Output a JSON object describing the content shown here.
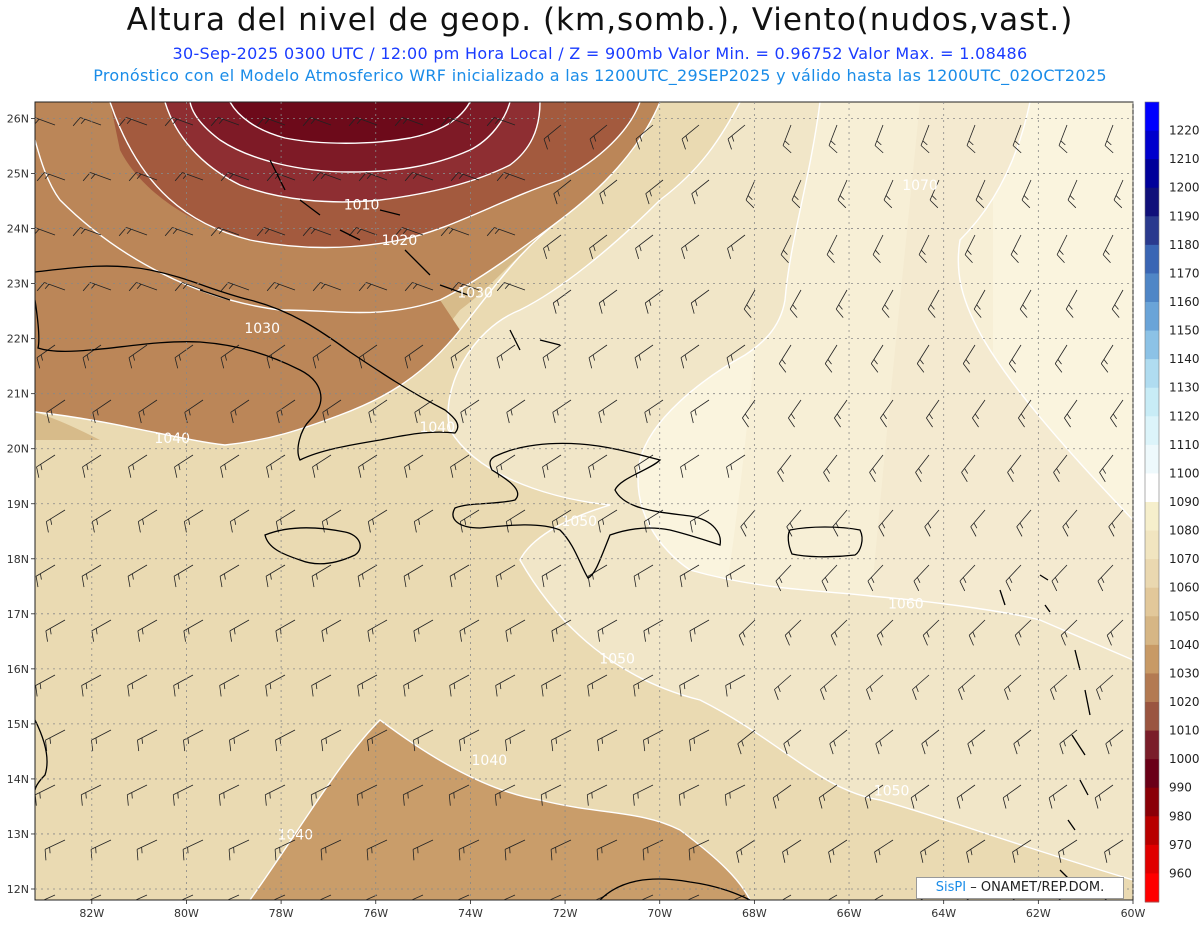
{
  "title": "Altura del nivel de geop. (km,somb.), Viento(nudos,vast.)",
  "subtitle1": "30-Sep-2025  0300 UTC / 12:00 pm Hora Local / Z = 900mb    Valor Min. = 0.96752   Valor Max. = 1.08486",
  "subtitle2": "Pronóstico con el Modelo Atmosferico WRF inicializado a las 1200UTC_29SEP2025 y válido hasta las  1200UTC_02OCT2025",
  "map": {
    "lat_labels": [
      "26N",
      "25N",
      "24N",
      "23N",
      "22N",
      "21N",
      "20N",
      "19N",
      "18N",
      "17N",
      "16N",
      "15N",
      "14N",
      "13N",
      "12N"
    ],
    "lon_labels": [
      "82W",
      "80W",
      "78W",
      "76W",
      "74W",
      "72W",
      "70W",
      "68W",
      "66W",
      "64W",
      "62W",
      "60W"
    ],
    "contour_labels": [
      {
        "text": "1010",
        "lon": -76.3,
        "lat": 24.35
      },
      {
        "text": "1020",
        "lon": -75.5,
        "lat": 23.7
      },
      {
        "text": "1030",
        "lon": -73.9,
        "lat": 22.75
      },
      {
        "text": "1030",
        "lon": -78.4,
        "lat": 22.1
      },
      {
        "text": "1040",
        "lon": -74.7,
        "lat": 20.3
      },
      {
        "text": "1040",
        "lon": -80.3,
        "lat": 20.1
      },
      {
        "text": "1050",
        "lon": -71.7,
        "lat": 18.6
      },
      {
        "text": "1050",
        "lon": -70.9,
        "lat": 16.1
      },
      {
        "text": "1060",
        "lon": -64.8,
        "lat": 17.1
      },
      {
        "text": "1070",
        "lon": -64.5,
        "lat": 24.7
      },
      {
        "text": "1050",
        "lon": -65.1,
        "lat": 13.7
      },
      {
        "text": "1040",
        "lon": -73.6,
        "lat": 14.25
      },
      {
        "text": "1040",
        "lon": -77.7,
        "lat": 12.9
      }
    ]
  },
  "legend": {
    "levels": [
      "1220",
      "1210",
      "1200",
      "1190",
      "1180",
      "1170",
      "1160",
      "1150",
      "1140",
      "1130",
      "1120",
      "1110",
      "1100",
      "1090",
      "1080",
      "1070",
      "1060",
      "1050",
      "1040",
      "1030",
      "1020",
      "1010",
      "1000",
      "990",
      "980",
      "970",
      "960"
    ],
    "colors": [
      "#0000ff",
      "#0000cd",
      "#00009a",
      "#10107a",
      "#2a3a8e",
      "#3a66b4",
      "#4f86c6",
      "#6aa4d8",
      "#8cc2e6",
      "#b0dcf0",
      "#c8ecf6",
      "#dcf4fa",
      "#eef9fc",
      "#ffffff",
      "#f6efcc",
      "#f1e5c0",
      "#ead8b0",
      "#e2c89a",
      "#d6b685",
      "#c89a66",
      "#b37a52",
      "#9a5540",
      "#7a1e2a",
      "#6a0018",
      "#8a0008",
      "#b80000",
      "#e00000",
      "#ff0000"
    ]
  },
  "colors": {
    "band_990": "#6d0a1a",
    "band_1000": "#7e1a26",
    "band_1010": "#8e2e32",
    "band_1020": "#a35a3e",
    "band_1030": "#bb8658",
    "band_1040": "#d7bb8a",
    "band_1050": "#eadab2",
    "band_1060": "#f1e6c8",
    "band_1070": "#f7efd6",
    "band_1080": "#faf4de"
  },
  "credit": {
    "brand": "SisPI",
    "text": " – ONAMET/REP.DOM."
  }
}
